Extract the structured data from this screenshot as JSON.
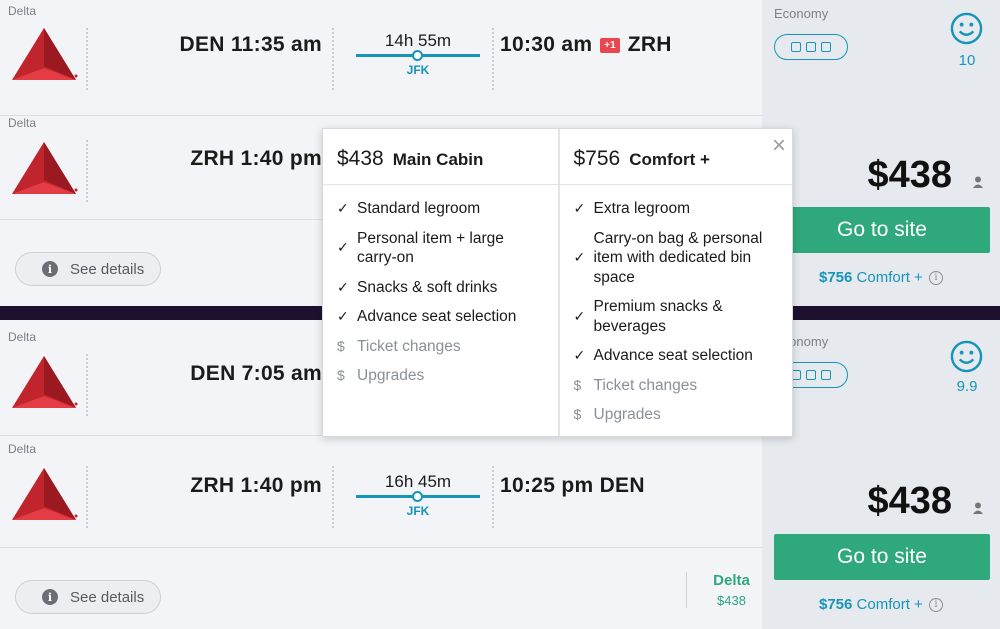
{
  "result1": {
    "outbound": {
      "airline": "Delta",
      "depart": "DEN 11:35 am",
      "duration": "14h 55m",
      "via": "JFK",
      "arrive_time": "10:30 am",
      "day_offset": "+1",
      "arrive_code": "ZRH"
    },
    "return": {
      "airline": "Delta",
      "depart": "ZRH 1:40 pm"
    },
    "see_details": "See details",
    "side": {
      "cabin": "Economy",
      "score": "10",
      "price": "$438",
      "cta": "Go to site",
      "comfort_price": "$756",
      "comfort_label": "Comfort +"
    }
  },
  "result2": {
    "outbound": {
      "airline": "Delta",
      "depart": "DEN 7:05 am"
    },
    "return": {
      "airline": "Delta",
      "depart": "ZRH 1:40 pm",
      "duration": "16h 45m",
      "via": "JFK",
      "arrive": "10:25 pm DEN"
    },
    "see_details": "See details",
    "provider": {
      "name": "Delta",
      "price": "$438"
    },
    "side": {
      "cabin": "Economy",
      "score": "9.9",
      "price": "$438",
      "cta": "Go to site",
      "comfort_price": "$756",
      "comfort_label": "Comfort +"
    }
  },
  "popup": {
    "main": {
      "price": "$438",
      "name": "Main Cabin",
      "features": [
        "Standard legroom",
        "Personal item + large carry-on",
        "Snacks & soft drinks",
        "Advance seat selection"
      ],
      "paid": [
        "Ticket changes",
        "Upgrades"
      ]
    },
    "comfort": {
      "price": "$756",
      "name": "Comfort +",
      "features": [
        "Extra legroom",
        "Carry-on bag & personal item with dedicated bin space",
        "Premium snacks & beverages",
        "Advance seat selection"
      ],
      "paid": [
        "Ticket changes",
        "Upgrades"
      ]
    },
    "close": "×"
  },
  "icons": {
    "check": "✓",
    "dollar": "$",
    "info": "i"
  },
  "colors": {
    "accent": "#1795b8",
    "cta": "#2fa87c",
    "divider": "#1e1130",
    "day_badge": "#e8474d"
  }
}
